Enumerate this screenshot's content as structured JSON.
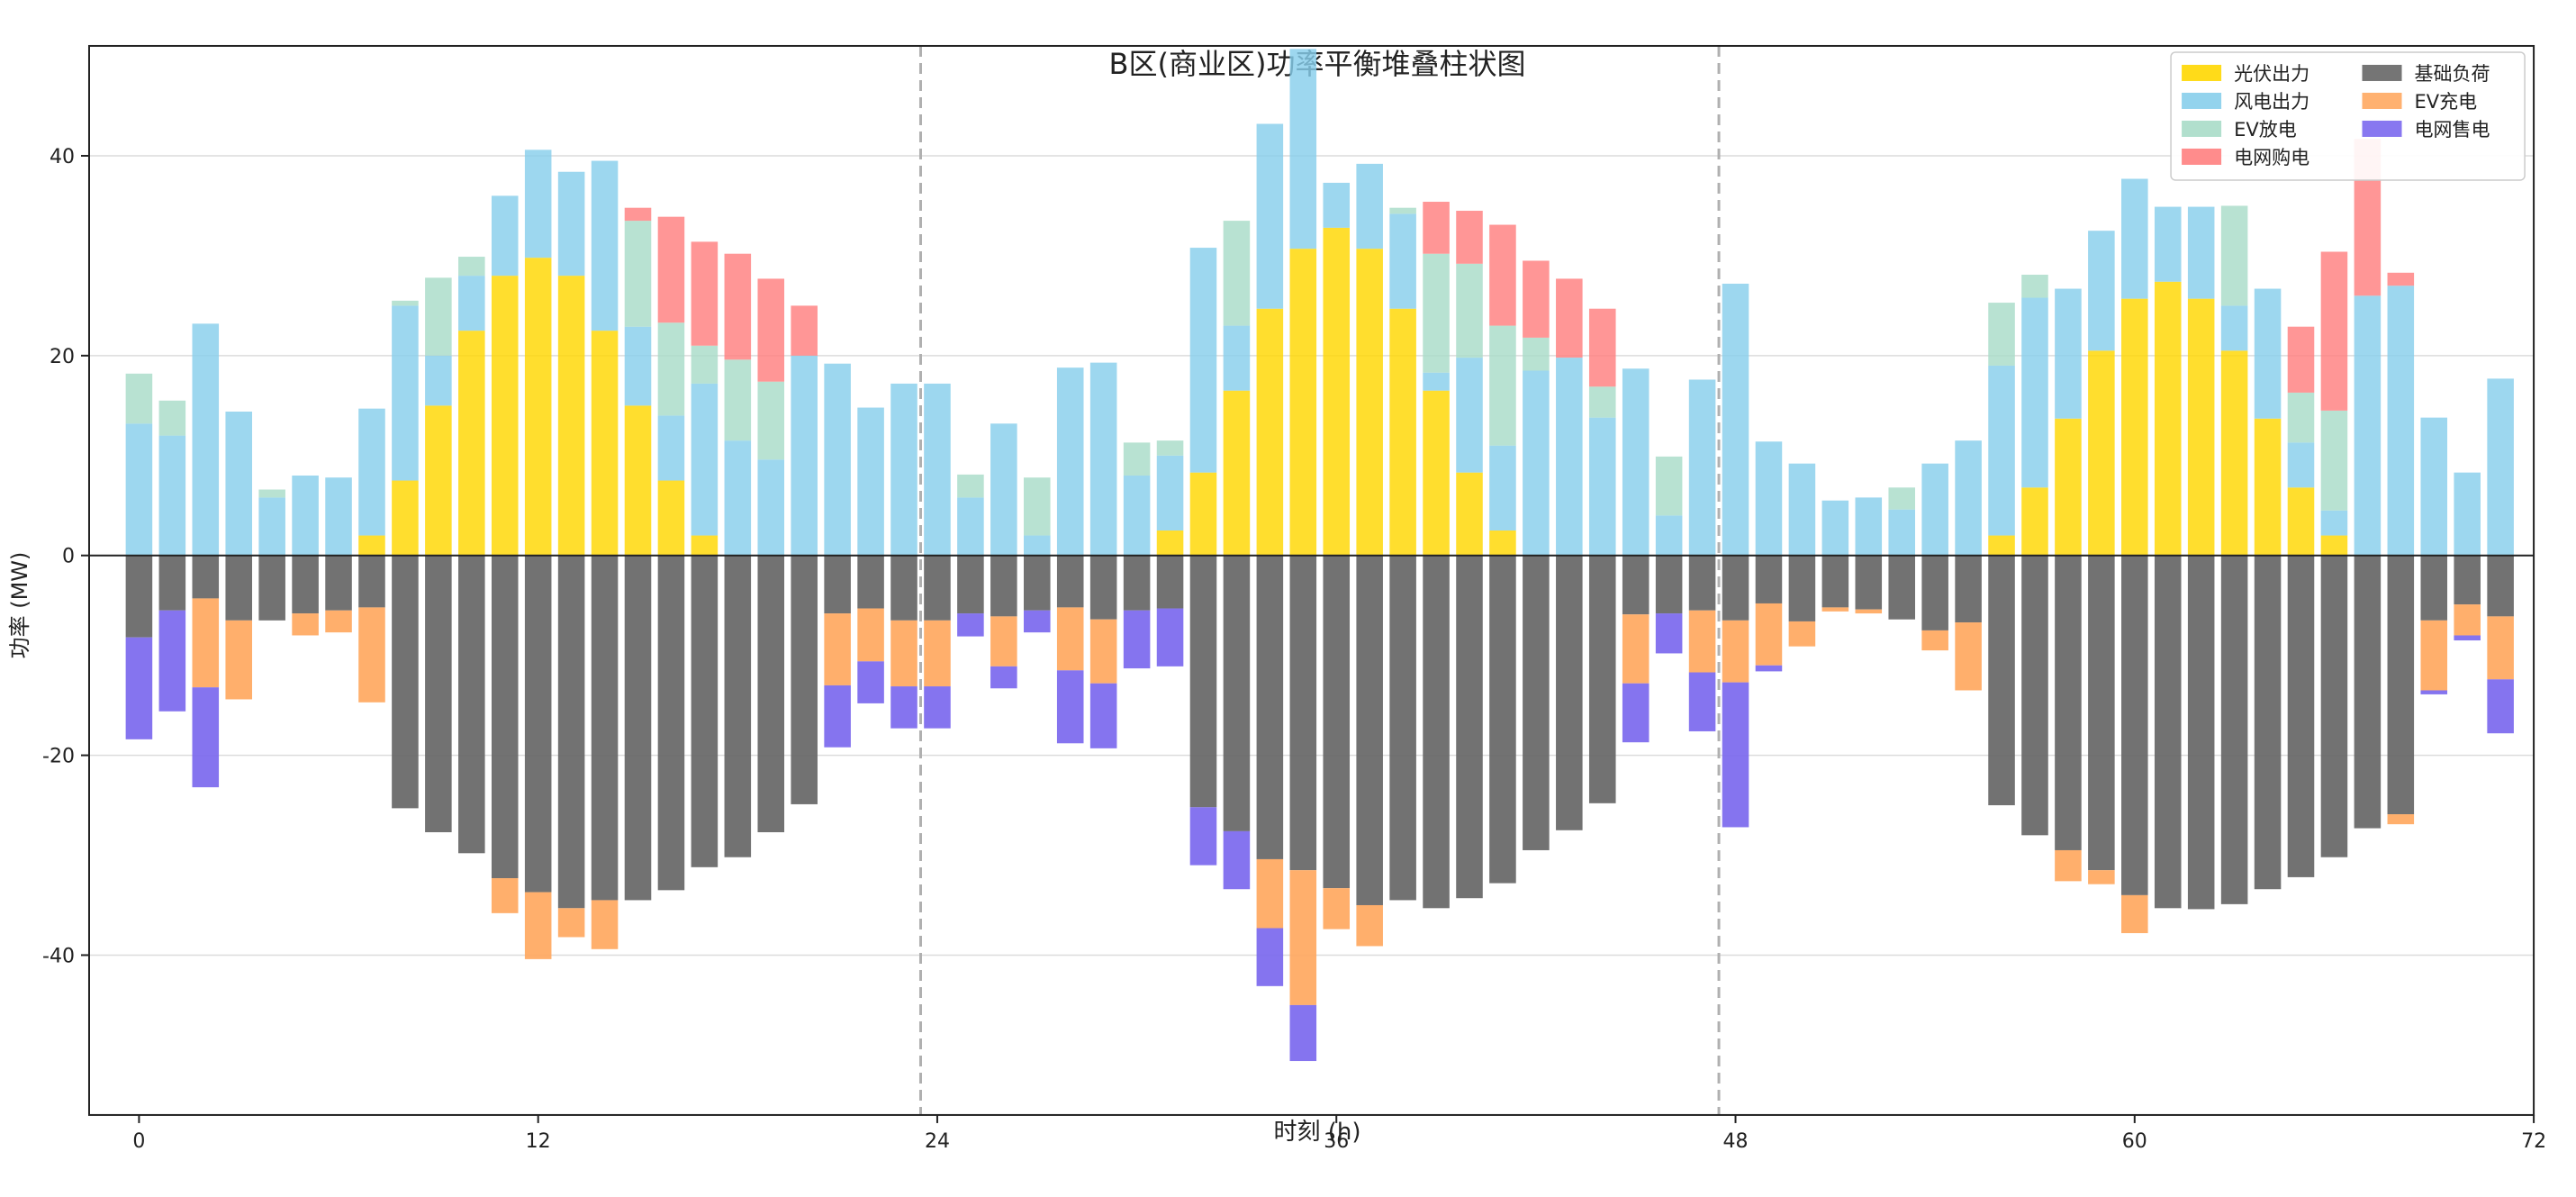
{
  "chart_data": {
    "type": "bar",
    "stacked": true,
    "title": "B区(商业区)功率平衡堆叠柱状图",
    "xlabel": "时刻 (h)",
    "ylabel": "功率 (MW)",
    "xlim": [
      -1.5,
      72
    ],
    "ylim": [
      -56,
      51
    ],
    "xticks": [
      0,
      12,
      24,
      36,
      48,
      60,
      72
    ],
    "yticks": [
      -40,
      -20,
      0,
      20,
      40
    ],
    "day_separators": [
      23.5,
      47.5
    ],
    "grid": "horizontal",
    "legend_position": "top-right",
    "legend_columns": [
      [
        "pv",
        "wind",
        "ev_discharge",
        "grid_buy"
      ],
      [
        "base_load",
        "ev_charge",
        "grid_sell"
      ]
    ],
    "x": [
      0,
      1,
      2,
      3,
      4,
      5,
      6,
      7,
      8,
      9,
      10,
      11,
      12,
      13,
      14,
      15,
      16,
      17,
      18,
      19,
      20,
      21,
      22,
      23,
      24,
      25,
      26,
      27,
      28,
      29,
      30,
      31,
      32,
      33,
      34,
      35,
      36,
      37,
      38,
      39,
      40,
      41,
      42,
      43,
      44,
      45,
      46,
      47,
      48,
      49,
      50,
      51,
      52,
      53,
      54,
      55,
      56,
      57,
      58,
      59,
      60,
      61,
      62,
      63,
      64,
      65,
      66,
      67,
      68,
      69,
      70,
      71
    ],
    "positive_series": [
      {
        "key": "pv",
        "name": "光伏出力",
        "color": "#FFD700",
        "values": [
          0,
          0,
          0,
          0,
          0,
          0,
          0,
          2,
          7.5,
          15,
          22.5,
          28,
          29.8,
          28,
          22.5,
          15,
          7.5,
          2,
          0,
          0,
          0,
          0,
          0,
          0,
          0,
          0,
          0,
          0,
          0,
          0,
          0,
          2.5,
          8.3,
          16.5,
          24.7,
          30.7,
          32.8,
          30.7,
          24.7,
          16.5,
          8.3,
          2.5,
          0,
          0,
          0,
          0,
          0,
          0,
          0,
          0,
          0,
          0,
          0,
          0,
          0,
          0,
          2,
          6.8,
          13.7,
          20.5,
          25.7,
          27.4,
          25.7,
          20.5,
          13.7,
          6.8,
          2,
          0,
          0,
          0,
          0,
          0
        ]
      },
      {
        "key": "wind",
        "name": "风电出力",
        "color": "#87CEEB",
        "values": [
          13.2,
          12,
          23.2,
          14.4,
          5.8,
          8,
          7.8,
          12.7,
          17.5,
          5,
          5.5,
          8,
          10.8,
          10.4,
          17,
          7.9,
          6.5,
          15.2,
          11.5,
          9.6,
          20,
          19.2,
          14.8,
          17.2,
          17.2,
          5.8,
          13.2,
          2,
          18.8,
          19.3,
          8,
          7.5,
          22.5,
          6.5,
          18.5,
          20,
          4.5,
          8.5,
          9.5,
          1.8,
          11.5,
          8.5,
          18.5,
          19.8,
          13.8,
          18.7,
          4,
          17.6,
          27.2,
          11.4,
          9.2,
          5.5,
          5.8,
          4.6,
          9.2,
          11.5,
          17,
          19,
          13,
          12,
          12,
          7.5,
          9.2,
          4.5,
          13,
          4.5,
          2.5,
          26,
          27,
          13.8,
          8.3,
          17.7
        ]
      },
      {
        "key": "ev_discharge",
        "name": "EV放电",
        "color": "#A8DCC8",
        "values": [
          5,
          3.5,
          0,
          0,
          0.8,
          0,
          0,
          0,
          0.5,
          7.8,
          1.9,
          0,
          0,
          0,
          0,
          10.6,
          9.3,
          3.8,
          8.1,
          7.8,
          0,
          0,
          0,
          0,
          0,
          2.3,
          0,
          5.8,
          0,
          0,
          3.3,
          1.5,
          0,
          10.5,
          0,
          0,
          0,
          0,
          0.6,
          11.9,
          9.4,
          12,
          3.3,
          0,
          3.1,
          0,
          5.9,
          0,
          0,
          0,
          0,
          0,
          0,
          2.2,
          0,
          0,
          6.3,
          2.3,
          0,
          0,
          0,
          0,
          0,
          10,
          0,
          5,
          10,
          0,
          0,
          0,
          0,
          0
        ]
      },
      {
        "key": "grid_buy",
        "name": "电网购电",
        "color": "#FF7F7F",
        "values": [
          0,
          0,
          0,
          0,
          0,
          0,
          0,
          0,
          0,
          0,
          0,
          0,
          0,
          0,
          0,
          1.3,
          10.6,
          10.4,
          10.6,
          10.3,
          5,
          0,
          0,
          0,
          0,
          0,
          0,
          0,
          0,
          0,
          0,
          0,
          0,
          0,
          0,
          0,
          0,
          0,
          0,
          5.2,
          5.3,
          10.1,
          7.7,
          7.9,
          7.8,
          0,
          0,
          0,
          0,
          0,
          0,
          0,
          0,
          0,
          0,
          0,
          0,
          0,
          0,
          0,
          0,
          0,
          0,
          0,
          0,
          6.6,
          15.9,
          15.7,
          1.3,
          0,
          0,
          0,
          0
        ]
      }
    ],
    "negative_series": [
      {
        "key": "base_load",
        "name": "基础负荷",
        "color": "#666666",
        "values": [
          8.2,
          5.5,
          4.3,
          6.5,
          6.5,
          5.8,
          5.5,
          5.2,
          25.3,
          27.7,
          29.8,
          32.3,
          33.7,
          35.3,
          34.5,
          34.5,
          33.5,
          31.2,
          30.2,
          27.7,
          24.9,
          5.8,
          5.3,
          6.5,
          6.5,
          5.8,
          6.1,
          5.5,
          5.2,
          6.4,
          5.5,
          5.3,
          25.2,
          27.6,
          30.4,
          31.5,
          33.3,
          35,
          34.5,
          35.3,
          34.3,
          32.8,
          29.5,
          27.5,
          24.8,
          5.9,
          5.8,
          5.5,
          6.5,
          4.8,
          6.6,
          5.2,
          5.4,
          6.4,
          7.5,
          6.7,
          25,
          28,
          29.5,
          31.5,
          34,
          35.3,
          35.4,
          34.9,
          33.4,
          32.2,
          30.2,
          27.3,
          25.9,
          6.5,
          4.9,
          6.1
        ]
      },
      {
        "key": "ev_charge",
        "name": "EV充电",
        "color": "#FFA860",
        "values": [
          0,
          0,
          8.9,
          7.9,
          0,
          2.2,
          2.2,
          9.5,
          0,
          0,
          0,
          3.5,
          6.7,
          2.9,
          4.9,
          0,
          0,
          0,
          0,
          0,
          0,
          7.2,
          5.3,
          6.6,
          6.6,
          0,
          5,
          0,
          6.3,
          6.4,
          0,
          0,
          0,
          0,
          6.9,
          13.5,
          4.1,
          4.1,
          0,
          0,
          0,
          0,
          0,
          0,
          0,
          6.9,
          0,
          6.2,
          6.2,
          6.2,
          2.5,
          0.4,
          0.4,
          0,
          2,
          6.8,
          0,
          0,
          3.1,
          1.4,
          3.8,
          0,
          0,
          0,
          0,
          0,
          0,
          0,
          1,
          7,
          3.1,
          6.3
        ]
      },
      {
        "key": "grid_sell",
        "name": "电网售电",
        "color": "#7B68EE",
        "values": [
          10.2,
          10.1,
          10,
          0,
          0,
          0,
          0,
          0,
          0,
          0,
          0,
          0,
          0,
          0,
          0,
          0,
          0,
          0,
          0,
          0,
          0,
          6.2,
          4.2,
          4.2,
          4.2,
          2.3,
          2.2,
          2.2,
          7.3,
          6.5,
          5.8,
          5.8,
          5.8,
          5.8,
          5.8,
          5.6,
          0,
          0,
          0,
          0,
          0,
          0,
          0,
          0,
          0,
          5.9,
          4,
          5.9,
          14.5,
          0.6,
          0,
          0,
          0,
          0,
          0,
          0,
          0,
          0,
          0,
          0,
          0,
          0,
          0,
          0,
          0,
          0,
          0,
          0,
          0,
          0.4,
          0.5,
          5.4
        ]
      }
    ]
  }
}
